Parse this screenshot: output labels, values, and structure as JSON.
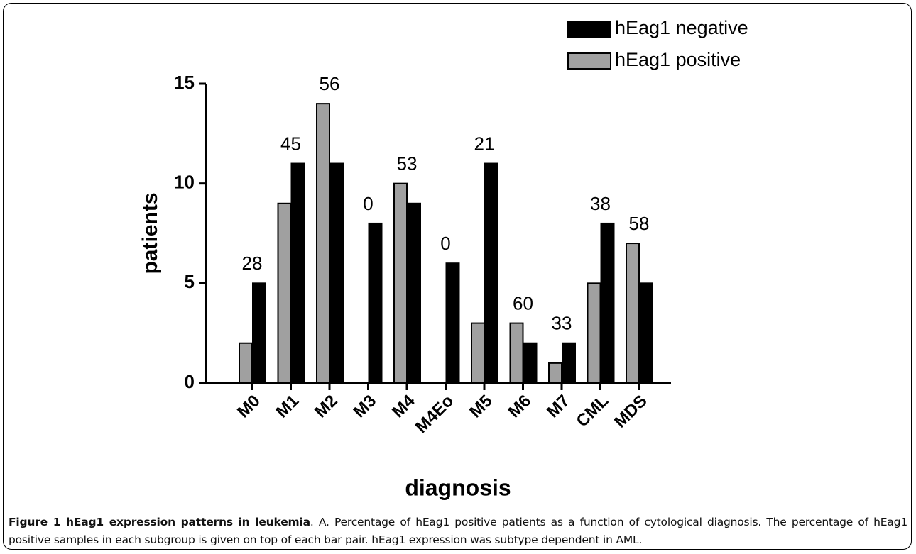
{
  "chart_data": {
    "type": "bar",
    "categories": [
      "M0",
      "M1",
      "M2",
      "M3",
      "M4",
      "M4Eo",
      "M5",
      "M6",
      "M7",
      "CML",
      "MDS"
    ],
    "series": [
      {
        "name": "hEag1 positive",
        "color": "#a0a0a0",
        "values": [
          2,
          9,
          14,
          0,
          10,
          0,
          3,
          3,
          1,
          5,
          7
        ]
      },
      {
        "name": "hEag1 negative",
        "color": "#000000",
        "values": [
          5,
          11,
          11,
          8,
          9,
          6,
          11,
          2,
          2,
          8,
          5
        ]
      }
    ],
    "pair_labels": [
      28,
      45,
      56,
      0,
      53,
      0,
      21,
      60,
      33,
      38,
      58
    ],
    "ylim": [
      0,
      15
    ],
    "yticks": [
      0,
      5,
      10,
      15
    ],
    "y_label": "patients",
    "x_label": "diagnosis"
  },
  "caption": {
    "title": "Figure 1 hEag1 expression patterns in leukemia",
    "text": ". A. Percentage of hEag1 positive patients as a function of cytological diagnosis. The percentage of hEag1 positive samples in each subgroup is given on top of each bar pair. hEag1 expression was subtype dependent in AML."
  }
}
